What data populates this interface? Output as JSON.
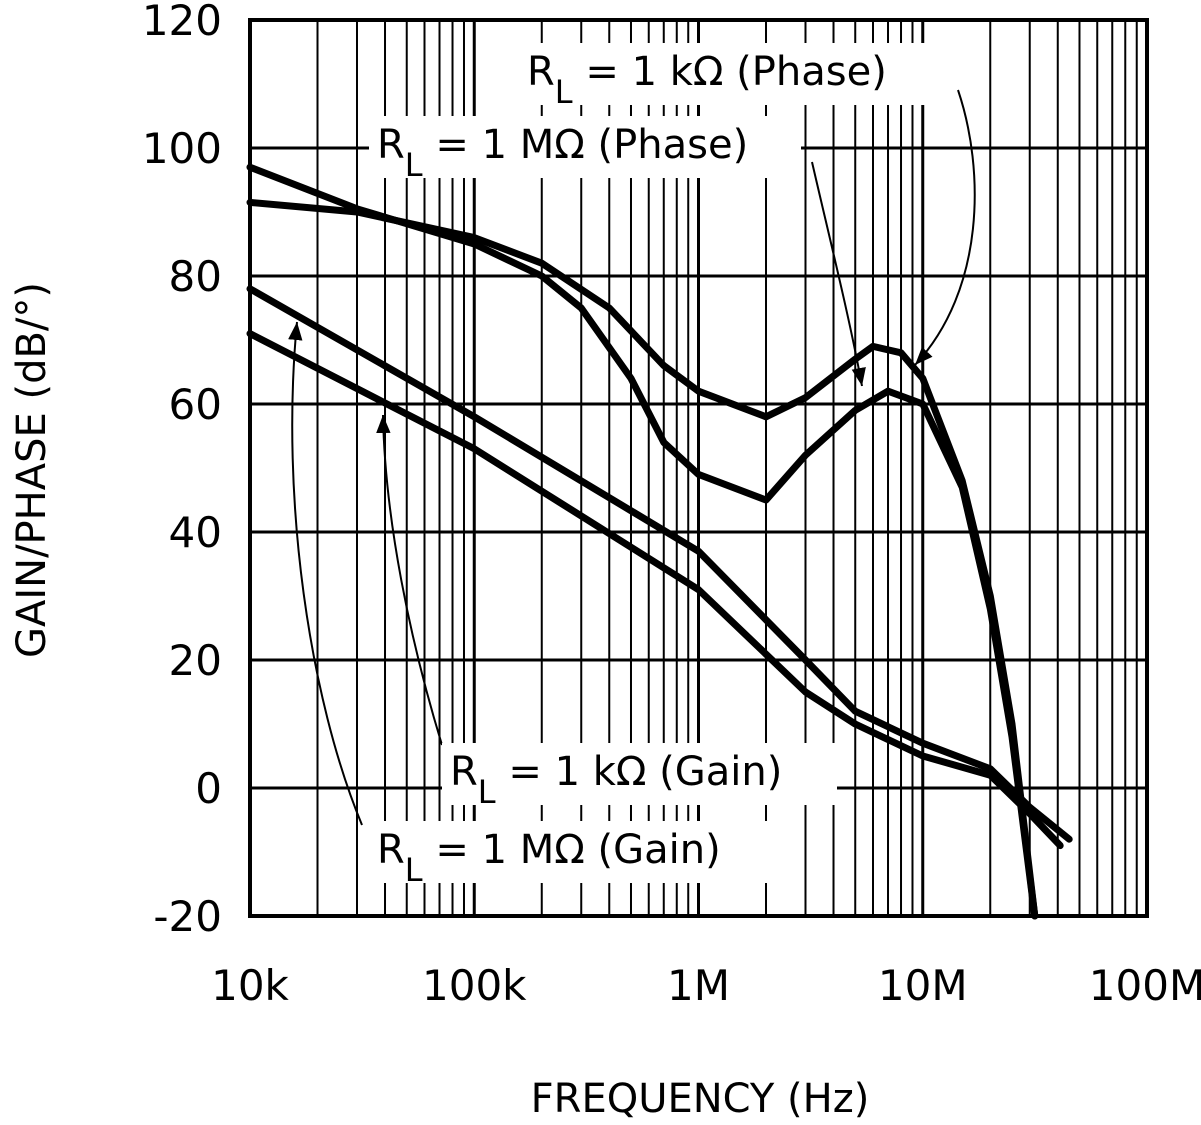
{
  "chart_data": {
    "type": "line",
    "xlabel": "FREQUENCY (Hz)",
    "ylabel": "GAIN/PHASE (dB/°)",
    "xscale": "log",
    "grid": true,
    "xlim": [
      10000,
      100000000
    ],
    "ylim": [
      -20,
      120
    ],
    "xticks": [
      {
        "value": 10000,
        "label": "10k"
      },
      {
        "value": 100000,
        "label": "100k"
      },
      {
        "value": 1000000,
        "label": "1M"
      },
      {
        "value": 10000000,
        "label": "10M"
      },
      {
        "value": 100000000,
        "label": "100M"
      }
    ],
    "xminorticks": [
      20000,
      30000,
      40000,
      50000,
      60000,
      70000,
      80000,
      90000,
      200000,
      300000,
      400000,
      500000,
      600000,
      700000,
      800000,
      900000,
      2000000,
      3000000,
      4000000,
      5000000,
      6000000,
      7000000,
      8000000,
      9000000,
      20000000,
      30000000,
      40000000,
      50000000,
      60000000,
      70000000,
      80000000,
      90000000
    ],
    "yticks": [
      -20,
      0,
      20,
      40,
      60,
      80,
      100,
      120
    ],
    "series": [
      {
        "name": "RL = 1 kΩ (Phase)",
        "color": "#000000",
        "x": [
          10000,
          30000,
          100000,
          200000,
          400000,
          700000,
          1000000,
          2000000,
          3000000,
          5000000,
          6000000,
          8000000,
          10000000,
          15000000,
          20000000,
          25000000,
          31600000
        ],
        "values": [
          91.5,
          90,
          86,
          82,
          75,
          66,
          62,
          58,
          61,
          67,
          69,
          68,
          64,
          48,
          30,
          10,
          -20
        ]
      },
      {
        "name": "RL = 1 MΩ (Phase)",
        "color": "#000000",
        "x": [
          10000,
          30000,
          100000,
          200000,
          300000,
          500000,
          700000,
          1000000,
          2000000,
          3000000,
          5000000,
          7000000,
          10000000,
          15000000,
          20000000,
          25000000,
          31600000
        ],
        "values": [
          97,
          90.5,
          85,
          80,
          75,
          64,
          54,
          49,
          45,
          52,
          59,
          62,
          60,
          47,
          28,
          8,
          -20
        ]
      },
      {
        "name": "RL = 1 kΩ (Gain)",
        "color": "#000000",
        "x": [
          10000,
          100000,
          1000000,
          3000000,
          5000000,
          10000000,
          20000000,
          30000000,
          45000000
        ],
        "values": [
          78,
          58,
          37,
          20,
          12,
          7,
          3,
          -3,
          -8
        ]
      },
      {
        "name": "RL = 1 MΩ (Gain)",
        "color": "#000000",
        "x": [
          10000,
          100000,
          1000000,
          3000000,
          5000000,
          10000000,
          20000000,
          30000000,
          41000000
        ],
        "values": [
          71,
          53,
          31,
          15,
          10,
          5,
          2,
          -4,
          -9
        ]
      }
    ],
    "annotations": [
      {
        "prefix": "R",
        "subscript": "L",
        "text": " = 1 kΩ (Phase)"
      },
      {
        "prefix": "R",
        "subscript": "L",
        "text": " = 1 MΩ (Phase)"
      },
      {
        "prefix": "R",
        "subscript": "L",
        "text": " = 1 kΩ (Gain)"
      },
      {
        "prefix": "R",
        "subscript": "L",
        "text": " = 1 MΩ (Gain)"
      }
    ]
  }
}
